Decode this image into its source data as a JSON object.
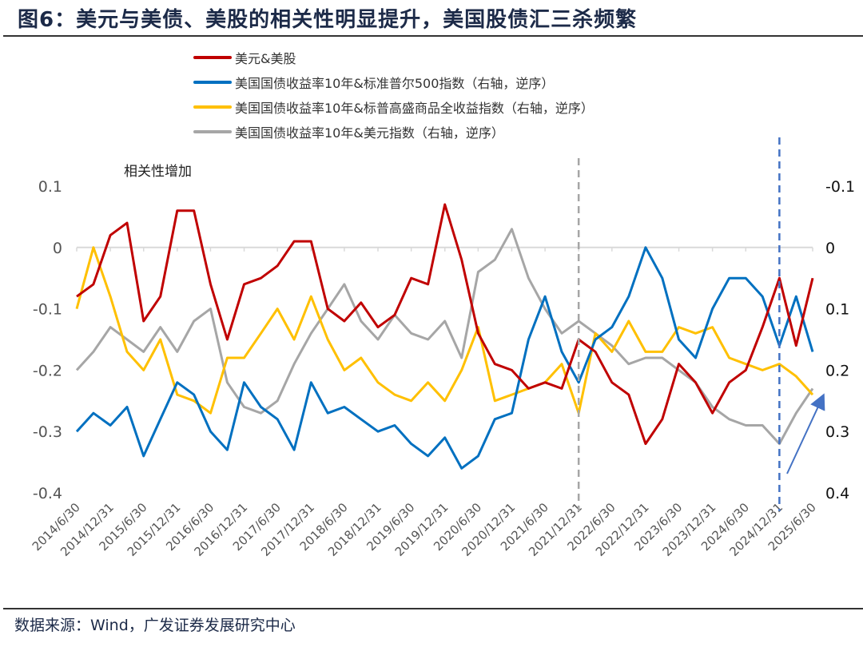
{
  "title": "图6：美元与美债、美股的相关性明显提升，美国股债汇三杀频繁",
  "source": "数据来源：Wind，广发证券发展研究中心",
  "chart_data": {
    "type": "line",
    "x": [
      "2014/6/30",
      "2014/9/30",
      "2014/12/31",
      "2015/3/31",
      "2015/6/30",
      "2015/9/30",
      "2015/12/31",
      "2016/3/31",
      "2016/6/30",
      "2016/9/30",
      "2016/12/31",
      "2017/3/31",
      "2017/6/30",
      "2017/9/30",
      "2017/12/31",
      "2018/3/31",
      "2018/6/30",
      "2018/9/30",
      "2018/12/31",
      "2019/3/31",
      "2019/6/30",
      "2019/9/30",
      "2019/12/31",
      "2020/3/31",
      "2020/6/30",
      "2020/9/30",
      "2020/12/31",
      "2021/3/31",
      "2021/6/30",
      "2021/9/30",
      "2021/12/31",
      "2022/3/31",
      "2022/6/30",
      "2022/9/30",
      "2022/12/31",
      "2023/3/31",
      "2023/6/30",
      "2023/9/30",
      "2023/12/31",
      "2024/3/31",
      "2024/6/30",
      "2024/9/30",
      "2024/12/31",
      "2025/3/31",
      "2025/6/30"
    ],
    "x_tick_labels": [
      "2014/6/30",
      "2014/12/31",
      "2015/6/30",
      "2015/12/31",
      "2016/6/30",
      "2016/12/31",
      "2017/6/30",
      "2017/12/31",
      "2018/6/30",
      "2018/12/31",
      "2019/6/30",
      "2019/12/31",
      "2020/6/30",
      "2020/12/31",
      "2021/6/30",
      "2021/12/31",
      "2022/6/30",
      "2022/12/31",
      "2023/6/30",
      "2023/12/31",
      "2024/6/30",
      "2024/12/31",
      "2025/6/30"
    ],
    "left_axis": {
      "ylim": [
        -0.4,
        0.1
      ],
      "ticks": [
        "0.1",
        "0",
        "-0.1",
        "-0.2",
        "-0.3",
        "-0.4"
      ]
    },
    "right_axis": {
      "ylim": [
        -0.1,
        0.4
      ],
      "reversed": true,
      "ticks": [
        "-0.1",
        "0",
        "0.1",
        "0.2",
        "0.3",
        "0.4"
      ]
    },
    "series": [
      {
        "name": "美元&美股",
        "axis": "left",
        "color": "#c00000",
        "values": [
          -0.08,
          -0.06,
          0.02,
          0.04,
          -0.12,
          -0.08,
          0.06,
          0.06,
          -0.06,
          -0.15,
          -0.06,
          -0.05,
          -0.03,
          0.01,
          0.01,
          -0.1,
          -0.12,
          -0.09,
          -0.13,
          -0.11,
          -0.05,
          -0.06,
          0.07,
          -0.02,
          -0.14,
          -0.19,
          -0.2,
          -0.23,
          -0.22,
          -0.23,
          -0.15,
          -0.17,
          -0.22,
          -0.24,
          -0.32,
          -0.28,
          -0.19,
          -0.22,
          -0.27,
          -0.22,
          -0.2,
          -0.13,
          -0.05,
          -0.16,
          -0.05
        ]
      },
      {
        "name": "美国国债收益率10年&标准普尔500指数（右轴，逆序）",
        "axis": "right",
        "color": "#0070c0",
        "values": [
          0.3,
          0.27,
          0.29,
          0.26,
          0.34,
          0.28,
          0.22,
          0.24,
          0.3,
          0.33,
          0.22,
          0.26,
          0.28,
          0.33,
          0.22,
          0.27,
          0.26,
          0.28,
          0.3,
          0.29,
          0.32,
          0.34,
          0.31,
          0.36,
          0.34,
          0.28,
          0.27,
          0.15,
          0.08,
          0.17,
          0.22,
          0.15,
          0.13,
          0.08,
          0.0,
          0.05,
          0.15,
          0.18,
          0.1,
          0.05,
          0.05,
          0.08,
          0.16,
          0.08,
          0.17
        ]
      },
      {
        "name": "美国国债收益率10年&标普高盛商品全收益指数（右轴，逆序）",
        "axis": "right",
        "color": "#ffc000",
        "values": [
          0.1,
          0.0,
          0.08,
          0.17,
          0.2,
          0.15,
          0.24,
          0.25,
          0.27,
          0.18,
          0.18,
          0.14,
          0.1,
          0.15,
          0.08,
          0.15,
          0.2,
          0.18,
          0.22,
          0.24,
          0.25,
          0.22,
          0.25,
          0.2,
          0.13,
          0.25,
          0.24,
          0.23,
          0.22,
          0.19,
          0.27,
          0.14,
          0.17,
          0.12,
          0.17,
          0.17,
          0.13,
          0.14,
          0.13,
          0.18,
          0.19,
          0.2,
          0.19,
          0.21,
          0.24
        ]
      },
      {
        "name": "美国国债收益率10年&美元指数（右轴，逆序）",
        "axis": "right",
        "color": "#a6a6a6",
        "values": [
          0.2,
          0.17,
          0.13,
          0.15,
          0.17,
          0.13,
          0.17,
          0.12,
          0.1,
          0.22,
          0.26,
          0.27,
          0.25,
          0.19,
          0.14,
          0.1,
          0.06,
          0.12,
          0.15,
          0.11,
          0.14,
          0.15,
          0.12,
          0.18,
          0.04,
          0.02,
          -0.03,
          0.05,
          0.1,
          0.14,
          0.12,
          0.14,
          0.16,
          0.19,
          0.18,
          0.18,
          0.2,
          0.22,
          0.26,
          0.28,
          0.29,
          0.29,
          0.32,
          0.27,
          0.23
        ]
      }
    ],
    "annotations": {
      "text": "相关性增加",
      "vlines": [
        {
          "date": "2021/12/31",
          "color": "#a6a6a6"
        },
        {
          "date": "2024/12/31",
          "color": "#4472c4"
        }
      ],
      "arrow_color": "#4472c4"
    },
    "legend": "top",
    "grid": false
  }
}
